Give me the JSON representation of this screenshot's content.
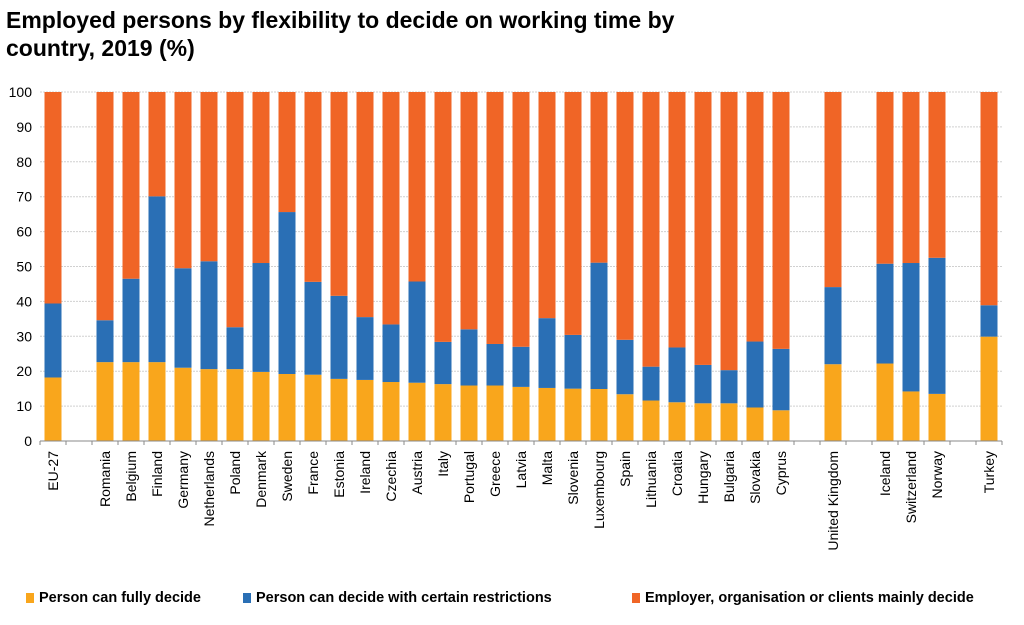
{
  "chart_data": {
    "type": "bar",
    "stacked": true,
    "title": "Employed persons by flexibility to decide on working time by country, 2019 (%)",
    "xlabel": "",
    "ylabel": "",
    "ylim": [
      0,
      100
    ],
    "yticks": [
      0,
      10,
      20,
      30,
      40,
      50,
      60,
      70,
      80,
      90,
      100
    ],
    "grid": true,
    "legend_position": "bottom",
    "categories": [
      "EU-27",
      "",
      "Romania",
      "Belgium",
      "Finland",
      "Germany",
      "Netherlands",
      "Poland",
      "Denmark",
      "Sweden",
      "France",
      "Estonia",
      "Ireland",
      "Czechia",
      "Austria",
      "Italy",
      "Portugal",
      "Greece",
      "Latvia",
      "Malta",
      "Slovenia",
      "Luxembourg",
      "Spain",
      "Lithuania",
      "Croatia",
      "Hungary",
      "Bulgaria",
      "Slovakia",
      "Cyprus",
      "",
      "United Kingdom",
      "",
      "Iceland",
      "Switzerland",
      "Norway",
      "",
      "Turkey"
    ],
    "series": [
      {
        "name": "Person can fully decide",
        "color": "#f9a61c",
        "values": [
          18.2,
          null,
          22.6,
          22.6,
          22.6,
          21.0,
          20.6,
          20.6,
          19.8,
          19.2,
          19.0,
          17.8,
          17.5,
          16.9,
          16.7,
          16.3,
          15.9,
          15.9,
          15.5,
          15.2,
          15.0,
          14.9,
          13.4,
          11.6,
          11.1,
          10.8,
          10.8,
          9.6,
          8.8,
          null,
          22.0,
          null,
          22.2,
          14.2,
          13.5,
          null,
          29.9
        ]
      },
      {
        "name": "Person can decide with certain restrictions",
        "color": "#2a6fb5",
        "values": [
          21.2,
          null,
          12.0,
          23.9,
          47.5,
          28.5,
          30.9,
          12.0,
          31.2,
          46.4,
          26.6,
          23.8,
          18.0,
          16.5,
          29.0,
          12.1,
          16.1,
          11.9,
          11.5,
          20.0,
          15.4,
          36.2,
          15.6,
          9.7,
          15.7,
          11.0,
          9.5,
          18.9,
          17.6,
          null,
          22.1,
          null,
          28.6,
          36.8,
          39.0,
          null,
          9.0
        ]
      },
      {
        "name": "Employer, organisation or clients mainly decide",
        "color": "#f06526",
        "values": [
          60.6,
          null,
          65.4,
          53.5,
          29.9,
          50.5,
          48.5,
          67.4,
          49.0,
          34.4,
          54.4,
          58.4,
          64.5,
          66.6,
          54.3,
          71.6,
          68.0,
          72.2,
          73.0,
          64.8,
          69.6,
          48.9,
          71.0,
          78.7,
          73.2,
          78.2,
          79.7,
          71.5,
          73.6,
          null,
          55.9,
          null,
          49.2,
          49.0,
          47.5,
          null,
          61.1
        ]
      }
    ]
  }
}
